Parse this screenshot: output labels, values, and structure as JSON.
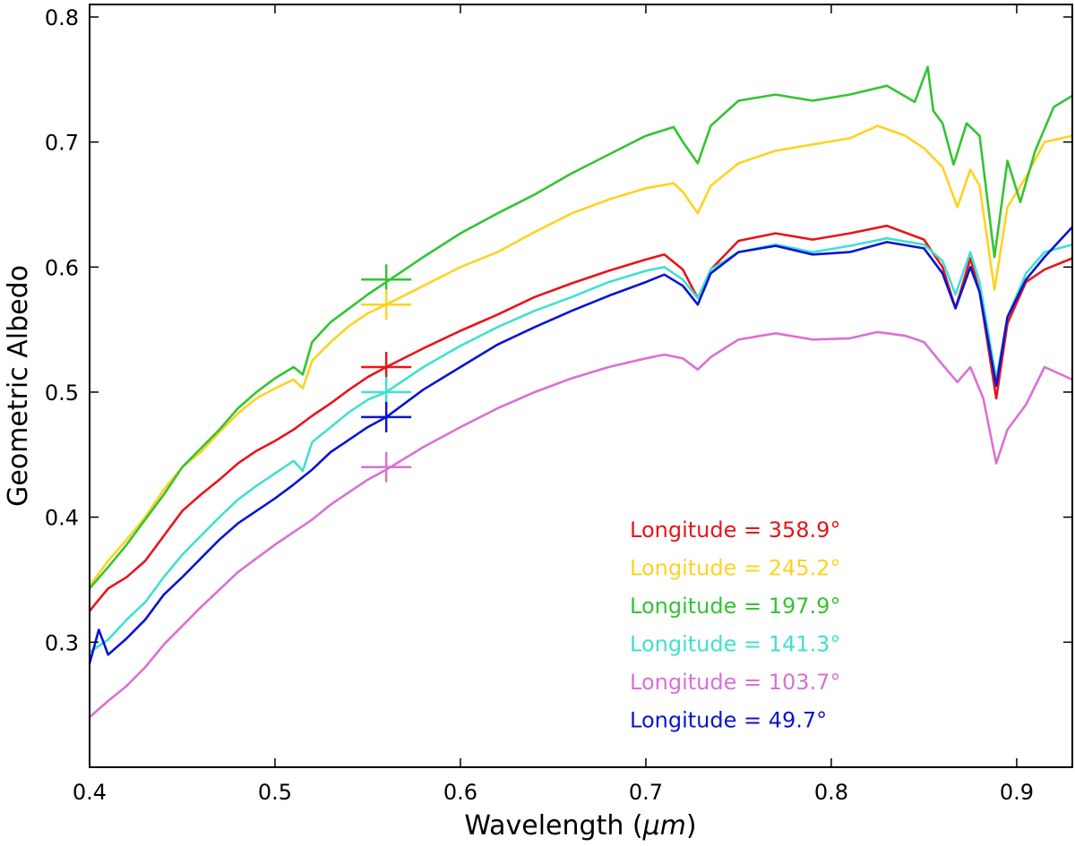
{
  "chart_data": {
    "type": "line",
    "xlabel_prefix": "Wavelength (",
    "xlabel_unit": "μm",
    "xlabel_suffix": ")",
    "ylabel": "Geometric Albedo",
    "xlim": [
      0.4,
      0.93
    ],
    "ylim": [
      0.2,
      0.81
    ],
    "xticks": [
      "0.4",
      "0.5",
      "0.6",
      "0.7",
      "0.8",
      "0.9"
    ],
    "yticks": [
      "0.3",
      "0.4",
      "0.5",
      "0.6",
      "0.7",
      "0.8"
    ],
    "grid": false,
    "legend_position": "lower-right",
    "series": [
      {
        "name": "Longitude = 358.9°",
        "color": "#e8141a",
        "points": [
          [
            0.4,
            0.325
          ],
          [
            0.41,
            0.343
          ],
          [
            0.42,
            0.352
          ],
          [
            0.43,
            0.365
          ],
          [
            0.44,
            0.385
          ],
          [
            0.45,
            0.405
          ],
          [
            0.46,
            0.418
          ],
          [
            0.47,
            0.43
          ],
          [
            0.48,
            0.443
          ],
          [
            0.49,
            0.453
          ],
          [
            0.5,
            0.461
          ],
          [
            0.51,
            0.47
          ],
          [
            0.52,
            0.481
          ],
          [
            0.53,
            0.491
          ],
          [
            0.54,
            0.502
          ],
          [
            0.55,
            0.512
          ],
          [
            0.56,
            0.52
          ],
          [
            0.58,
            0.535
          ],
          [
            0.6,
            0.549
          ],
          [
            0.62,
            0.562
          ],
          [
            0.64,
            0.576
          ],
          [
            0.66,
            0.587
          ],
          [
            0.68,
            0.597
          ],
          [
            0.7,
            0.606
          ],
          [
            0.71,
            0.61
          ],
          [
            0.72,
            0.598
          ],
          [
            0.728,
            0.575
          ],
          [
            0.735,
            0.598
          ],
          [
            0.75,
            0.621
          ],
          [
            0.77,
            0.627
          ],
          [
            0.79,
            0.622
          ],
          [
            0.81,
            0.627
          ],
          [
            0.83,
            0.633
          ],
          [
            0.85,
            0.622
          ],
          [
            0.86,
            0.6
          ],
          [
            0.867,
            0.567
          ],
          [
            0.875,
            0.607
          ],
          [
            0.88,
            0.58
          ],
          [
            0.889,
            0.495
          ],
          [
            0.895,
            0.555
          ],
          [
            0.905,
            0.588
          ],
          [
            0.915,
            0.598
          ],
          [
            0.93,
            0.607
          ]
        ]
      },
      {
        "name": "Longitude = 245.2°",
        "color": "#ffd21f",
        "points": [
          [
            0.4,
            0.345
          ],
          [
            0.41,
            0.365
          ],
          [
            0.42,
            0.382
          ],
          [
            0.43,
            0.4
          ],
          [
            0.44,
            0.422
          ],
          [
            0.45,
            0.44
          ],
          [
            0.46,
            0.452
          ],
          [
            0.47,
            0.468
          ],
          [
            0.48,
            0.483
          ],
          [
            0.49,
            0.495
          ],
          [
            0.5,
            0.503
          ],
          [
            0.51,
            0.51
          ],
          [
            0.515,
            0.503
          ],
          [
            0.52,
            0.525
          ],
          [
            0.53,
            0.54
          ],
          [
            0.54,
            0.553
          ],
          [
            0.55,
            0.563
          ],
          [
            0.56,
            0.57
          ],
          [
            0.58,
            0.585
          ],
          [
            0.6,
            0.6
          ],
          [
            0.62,
            0.612
          ],
          [
            0.64,
            0.628
          ],
          [
            0.66,
            0.643
          ],
          [
            0.68,
            0.654
          ],
          [
            0.7,
            0.663
          ],
          [
            0.715,
            0.667
          ],
          [
            0.72,
            0.66
          ],
          [
            0.728,
            0.643
          ],
          [
            0.735,
            0.665
          ],
          [
            0.75,
            0.683
          ],
          [
            0.77,
            0.693
          ],
          [
            0.79,
            0.698
          ],
          [
            0.81,
            0.703
          ],
          [
            0.825,
            0.713
          ],
          [
            0.84,
            0.705
          ],
          [
            0.85,
            0.695
          ],
          [
            0.86,
            0.68
          ],
          [
            0.868,
            0.648
          ],
          [
            0.875,
            0.678
          ],
          [
            0.88,
            0.665
          ],
          [
            0.888,
            0.582
          ],
          [
            0.895,
            0.648
          ],
          [
            0.905,
            0.672
          ],
          [
            0.915,
            0.7
          ],
          [
            0.93,
            0.705
          ]
        ]
      },
      {
        "name": "Longitude = 197.9°",
        "color": "#33c433",
        "points": [
          [
            0.4,
            0.343
          ],
          [
            0.41,
            0.36
          ],
          [
            0.42,
            0.378
          ],
          [
            0.43,
            0.398
          ],
          [
            0.44,
            0.418
          ],
          [
            0.45,
            0.44
          ],
          [
            0.46,
            0.455
          ],
          [
            0.47,
            0.47
          ],
          [
            0.48,
            0.487
          ],
          [
            0.49,
            0.5
          ],
          [
            0.5,
            0.511
          ],
          [
            0.51,
            0.52
          ],
          [
            0.515,
            0.514
          ],
          [
            0.52,
            0.54
          ],
          [
            0.53,
            0.556
          ],
          [
            0.54,
            0.567
          ],
          [
            0.55,
            0.578
          ],
          [
            0.56,
            0.588
          ],
          [
            0.58,
            0.608
          ],
          [
            0.6,
            0.627
          ],
          [
            0.62,
            0.643
          ],
          [
            0.64,
            0.658
          ],
          [
            0.66,
            0.675
          ],
          [
            0.68,
            0.69
          ],
          [
            0.7,
            0.705
          ],
          [
            0.715,
            0.712
          ],
          [
            0.72,
            0.7
          ],
          [
            0.728,
            0.683
          ],
          [
            0.735,
            0.713
          ],
          [
            0.75,
            0.733
          ],
          [
            0.77,
            0.738
          ],
          [
            0.79,
            0.733
          ],
          [
            0.81,
            0.738
          ],
          [
            0.83,
            0.745
          ],
          [
            0.845,
            0.732
          ],
          [
            0.852,
            0.76
          ],
          [
            0.855,
            0.725
          ],
          [
            0.86,
            0.715
          ],
          [
            0.866,
            0.682
          ],
          [
            0.873,
            0.715
          ],
          [
            0.88,
            0.705
          ],
          [
            0.888,
            0.608
          ],
          [
            0.895,
            0.685
          ],
          [
            0.902,
            0.652
          ],
          [
            0.91,
            0.693
          ],
          [
            0.92,
            0.728
          ],
          [
            0.93,
            0.737
          ]
        ]
      },
      {
        "name": "Longitude = 141.3°",
        "color": "#40e0d0",
        "points": [
          [
            0.4,
            0.292
          ],
          [
            0.41,
            0.302
          ],
          [
            0.42,
            0.318
          ],
          [
            0.43,
            0.332
          ],
          [
            0.44,
            0.352
          ],
          [
            0.45,
            0.37
          ],
          [
            0.46,
            0.385
          ],
          [
            0.47,
            0.4
          ],
          [
            0.48,
            0.414
          ],
          [
            0.49,
            0.425
          ],
          [
            0.5,
            0.435
          ],
          [
            0.51,
            0.445
          ],
          [
            0.515,
            0.437
          ],
          [
            0.52,
            0.46
          ],
          [
            0.53,
            0.472
          ],
          [
            0.54,
            0.484
          ],
          [
            0.55,
            0.494
          ],
          [
            0.56,
            0.5
          ],
          [
            0.58,
            0.52
          ],
          [
            0.6,
            0.537
          ],
          [
            0.62,
            0.552
          ],
          [
            0.64,
            0.565
          ],
          [
            0.66,
            0.576
          ],
          [
            0.68,
            0.588
          ],
          [
            0.7,
            0.597
          ],
          [
            0.71,
            0.6
          ],
          [
            0.72,
            0.59
          ],
          [
            0.728,
            0.575
          ],
          [
            0.735,
            0.598
          ],
          [
            0.75,
            0.612
          ],
          [
            0.77,
            0.618
          ],
          [
            0.79,
            0.612
          ],
          [
            0.81,
            0.617
          ],
          [
            0.83,
            0.623
          ],
          [
            0.85,
            0.618
          ],
          [
            0.86,
            0.605
          ],
          [
            0.867,
            0.578
          ],
          [
            0.875,
            0.612
          ],
          [
            0.88,
            0.588
          ],
          [
            0.889,
            0.51
          ],
          [
            0.895,
            0.56
          ],
          [
            0.905,
            0.595
          ],
          [
            0.915,
            0.612
          ],
          [
            0.93,
            0.618
          ]
        ]
      },
      {
        "name": "Longitude = 103.7°",
        "color": "#da70d6",
        "points": [
          [
            0.4,
            0.24
          ],
          [
            0.41,
            0.253
          ],
          [
            0.42,
            0.265
          ],
          [
            0.43,
            0.28
          ],
          [
            0.44,
            0.298
          ],
          [
            0.45,
            0.313
          ],
          [
            0.46,
            0.328
          ],
          [
            0.47,
            0.342
          ],
          [
            0.48,
            0.356
          ],
          [
            0.49,
            0.367
          ],
          [
            0.5,
            0.378
          ],
          [
            0.51,
            0.388
          ],
          [
            0.52,
            0.398
          ],
          [
            0.53,
            0.41
          ],
          [
            0.54,
            0.42
          ],
          [
            0.55,
            0.43
          ],
          [
            0.56,
            0.438
          ],
          [
            0.58,
            0.456
          ],
          [
            0.6,
            0.472
          ],
          [
            0.62,
            0.487
          ],
          [
            0.64,
            0.5
          ],
          [
            0.66,
            0.511
          ],
          [
            0.68,
            0.52
          ],
          [
            0.7,
            0.527
          ],
          [
            0.71,
            0.53
          ],
          [
            0.72,
            0.527
          ],
          [
            0.728,
            0.518
          ],
          [
            0.735,
            0.528
          ],
          [
            0.75,
            0.542
          ],
          [
            0.77,
            0.547
          ],
          [
            0.79,
            0.542
          ],
          [
            0.81,
            0.543
          ],
          [
            0.825,
            0.548
          ],
          [
            0.84,
            0.545
          ],
          [
            0.85,
            0.54
          ],
          [
            0.86,
            0.522
          ],
          [
            0.868,
            0.508
          ],
          [
            0.875,
            0.52
          ],
          [
            0.882,
            0.495
          ],
          [
            0.889,
            0.443
          ],
          [
            0.895,
            0.47
          ],
          [
            0.905,
            0.49
          ],
          [
            0.915,
            0.52
          ],
          [
            0.93,
            0.51
          ]
        ]
      },
      {
        "name": "Longitude = 49.7°",
        "color": "#0a14d2",
        "points": [
          [
            0.4,
            0.283
          ],
          [
            0.405,
            0.31
          ],
          [
            0.41,
            0.29
          ],
          [
            0.42,
            0.303
          ],
          [
            0.43,
            0.318
          ],
          [
            0.44,
            0.338
          ],
          [
            0.45,
            0.352
          ],
          [
            0.46,
            0.367
          ],
          [
            0.47,
            0.382
          ],
          [
            0.48,
            0.395
          ],
          [
            0.49,
            0.405
          ],
          [
            0.5,
            0.415
          ],
          [
            0.51,
            0.426
          ],
          [
            0.52,
            0.438
          ],
          [
            0.53,
            0.452
          ],
          [
            0.54,
            0.462
          ],
          [
            0.55,
            0.472
          ],
          [
            0.56,
            0.48
          ],
          [
            0.58,
            0.502
          ],
          [
            0.6,
            0.52
          ],
          [
            0.62,
            0.538
          ],
          [
            0.64,
            0.552
          ],
          [
            0.66,
            0.565
          ],
          [
            0.68,
            0.577
          ],
          [
            0.7,
            0.588
          ],
          [
            0.71,
            0.594
          ],
          [
            0.72,
            0.585
          ],
          [
            0.728,
            0.57
          ],
          [
            0.735,
            0.595
          ],
          [
            0.75,
            0.612
          ],
          [
            0.77,
            0.617
          ],
          [
            0.79,
            0.61
          ],
          [
            0.81,
            0.612
          ],
          [
            0.83,
            0.62
          ],
          [
            0.85,
            0.615
          ],
          [
            0.86,
            0.595
          ],
          [
            0.867,
            0.567
          ],
          [
            0.875,
            0.6
          ],
          [
            0.88,
            0.58
          ],
          [
            0.889,
            0.505
          ],
          [
            0.895,
            0.56
          ],
          [
            0.905,
            0.59
          ],
          [
            0.915,
            0.608
          ],
          [
            0.93,
            0.632
          ]
        ]
      }
    ],
    "markers": [
      {
        "x": 0.56,
        "y": 0.59,
        "color": "#33c433"
      },
      {
        "x": 0.56,
        "y": 0.57,
        "color": "#ffd21f"
      },
      {
        "x": 0.56,
        "y": 0.52,
        "color": "#e8141a"
      },
      {
        "x": 0.56,
        "y": 0.5,
        "color": "#40e0d0"
      },
      {
        "x": 0.56,
        "y": 0.48,
        "color": "#0a14d2"
      },
      {
        "x": 0.56,
        "y": 0.44,
        "color": "#da70d6"
      }
    ]
  }
}
